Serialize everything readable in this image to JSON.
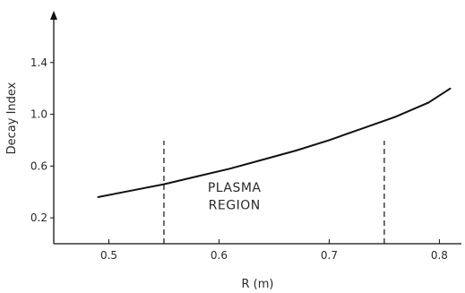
{
  "chart_data": {
    "type": "line",
    "title": "",
    "xlabel": "R (m)",
    "ylabel": "Decay Index",
    "xlim": [
      0.45,
      0.82
    ],
    "ylim": [
      0.0,
      1.8
    ],
    "x_ticks": [
      0.5,
      0.6,
      0.7,
      0.8
    ],
    "x_tick_labels": [
      "0.5",
      "0.6",
      "0.7",
      "0.8"
    ],
    "y_ticks": [
      0.2,
      0.6,
      1.0,
      1.4
    ],
    "y_tick_labels": [
      "0.2",
      "0.6",
      "1.0",
      "1.4"
    ],
    "grid": false,
    "legend": "none",
    "series": [
      {
        "x": [
          0.49,
          0.52,
          0.55,
          0.58,
          0.61,
          0.64,
          0.67,
          0.7,
          0.73,
          0.76,
          0.79,
          0.81
        ],
        "y": [
          0.36,
          0.41,
          0.46,
          0.52,
          0.58,
          0.65,
          0.72,
          0.8,
          0.89,
          0.98,
          1.09,
          1.2
        ]
      }
    ],
    "boundaries": [
      0.55,
      0.75
    ],
    "annotations": [
      {
        "text": "PLASMA",
        "x": 0.614,
        "y": 0.4
      },
      {
        "text": "REGION",
        "x": 0.614,
        "y": 0.265
      }
    ],
    "color": "#111111"
  }
}
